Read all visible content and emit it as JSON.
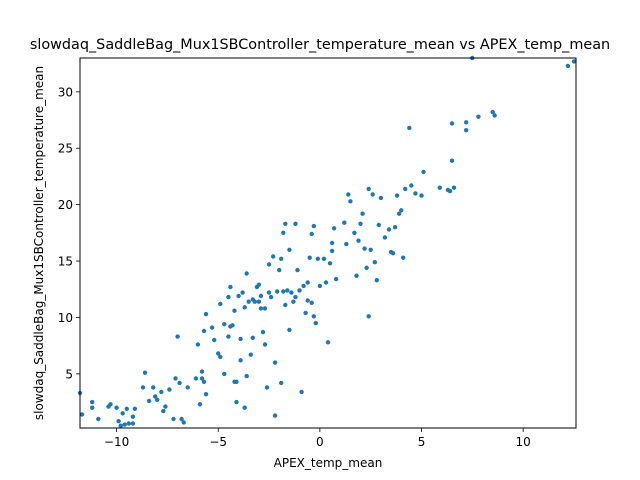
{
  "chart_data": {
    "type": "scatter",
    "title": "slowdaq_SaddleBag_Mux1SBController_temperature_mean vs APEX_temp_mean",
    "xlabel": "APEX_temp_mean",
    "ylabel": "slowdaq_SaddleBag_Mux1SBController_temperature_mean",
    "xlim": [
      -11.8,
      12.6
    ],
    "ylim": [
      0.2,
      33.0
    ],
    "xticks": [
      -10,
      -5,
      0,
      5,
      10
    ],
    "yticks": [
      5,
      10,
      15,
      20,
      25,
      30
    ],
    "grid": false,
    "marker_color": "#1f77b4",
    "points": [
      [
        -11.8,
        3.3
      ],
      [
        -11.7,
        1.4
      ],
      [
        -11.2,
        2.5
      ],
      [
        -11.2,
        2.0
      ],
      [
        -10.9,
        1.0
      ],
      [
        -10.4,
        2.1
      ],
      [
        -10.3,
        2.3
      ],
      [
        -10.0,
        2.0
      ],
      [
        -9.9,
        0.8
      ],
      [
        -9.8,
        0.4
      ],
      [
        -9.7,
        1.5
      ],
      [
        -9.6,
        0.5
      ],
      [
        -9.5,
        1.9
      ],
      [
        -9.4,
        0.6
      ],
      [
        -9.2,
        1.2
      ],
      [
        -9.2,
        0.6
      ],
      [
        -9.1,
        1.9
      ],
      [
        -8.7,
        3.8
      ],
      [
        -8.6,
        5.1
      ],
      [
        -8.4,
        2.6
      ],
      [
        -8.2,
        3.8
      ],
      [
        -8.1,
        3.0
      ],
      [
        -8.0,
        2.7
      ],
      [
        -7.8,
        3.4
      ],
      [
        -7.7,
        1.7
      ],
      [
        -7.6,
        2.1
      ],
      [
        -7.4,
        3.6
      ],
      [
        -7.2,
        1.0
      ],
      [
        -7.1,
        4.6
      ],
      [
        -7.0,
        8.3
      ],
      [
        -6.9,
        4.2
      ],
      [
        -6.8,
        1.0
      ],
      [
        -6.7,
        0.7
      ],
      [
        -6.5,
        3.8
      ],
      [
        -6.1,
        4.6
      ],
      [
        -6.0,
        7.6
      ],
      [
        -5.9,
        2.3
      ],
      [
        -5.8,
        4.6
      ],
      [
        -5.8,
        5.2
      ],
      [
        -5.7,
        4.3
      ],
      [
        -5.7,
        8.8
      ],
      [
        -5.6,
        10.3
      ],
      [
        -5.6,
        3.2
      ],
      [
        -5.3,
        9.1
      ],
      [
        -5.2,
        8.0
      ],
      [
        -5.0,
        6.8
      ],
      [
        -4.9,
        6.5
      ],
      [
        -4.9,
        11.2
      ],
      [
        -4.7,
        5.0
      ],
      [
        -4.7,
        9.4
      ],
      [
        -4.5,
        8.3
      ],
      [
        -4.5,
        11.8
      ],
      [
        -4.4,
        9.2
      ],
      [
        -4.4,
        12.7
      ],
      [
        -4.3,
        9.3
      ],
      [
        -4.2,
        10.6
      ],
      [
        -4.2,
        4.3
      ],
      [
        -4.1,
        4.3
      ],
      [
        -4.1,
        2.5
      ],
      [
        -4.0,
        11.9
      ],
      [
        -3.9,
        6.2
      ],
      [
        -3.9,
        8.1
      ],
      [
        -3.8,
        12.2
      ],
      [
        -3.7,
        10.9
      ],
      [
        -3.7,
        2.0
      ],
      [
        -3.6,
        4.8
      ],
      [
        -3.6,
        13.9
      ],
      [
        -3.5,
        11.4
      ],
      [
        -3.4,
        6.7
      ],
      [
        -3.3,
        8.2
      ],
      [
        -3.3,
        11.6
      ],
      [
        -3.2,
        11.4
      ],
      [
        -3.1,
        12.7
      ],
      [
        -3.0,
        11.4
      ],
      [
        -3.0,
        12.9
      ],
      [
        -2.9,
        10.8
      ],
      [
        -2.9,
        11.9
      ],
      [
        -2.8,
        8.7
      ],
      [
        -2.7,
        7.6
      ],
      [
        -2.7,
        10.8
      ],
      [
        -2.6,
        3.8
      ],
      [
        -2.5,
        12.2
      ],
      [
        -2.5,
        14.7
      ],
      [
        -2.4,
        11.8
      ],
      [
        -2.3,
        15.4
      ],
      [
        -2.2,
        1.3
      ],
      [
        -2.2,
        6.0
      ],
      [
        -2.1,
        12.3
      ],
      [
        -2.0,
        14.2
      ],
      [
        -1.9,
        15.2
      ],
      [
        -1.9,
        4.2
      ],
      [
        -1.8,
        12.3
      ],
      [
        -1.8,
        17.5
      ],
      [
        -1.7,
        18.3
      ],
      [
        -1.7,
        11.1
      ],
      [
        -1.6,
        12.4
      ],
      [
        -1.5,
        16.0
      ],
      [
        -1.5,
        8.9
      ],
      [
        -1.4,
        12.2
      ],
      [
        -1.3,
        11.4
      ],
      [
        -1.2,
        11.8
      ],
      [
        -1.2,
        18.3
      ],
      [
        -1.1,
        14.2
      ],
      [
        -1.0,
        12.4
      ],
      [
        -0.9,
        3.4
      ],
      [
        -0.8,
        12.8
      ],
      [
        -0.7,
        10.4
      ],
      [
        -0.6,
        11.5
      ],
      [
        -0.6,
        13.1
      ],
      [
        -0.5,
        15.3
      ],
      [
        -0.4,
        11.3
      ],
      [
        -0.4,
        17.4
      ],
      [
        -0.3,
        10.1
      ],
      [
        -0.3,
        18.1
      ],
      [
        -0.2,
        9.5
      ],
      [
        -0.1,
        15.2
      ],
      [
        0.0,
        12.8
      ],
      [
        0.2,
        15.2
      ],
      [
        0.3,
        13.1
      ],
      [
        0.4,
        7.8
      ],
      [
        0.5,
        14.8
      ],
      [
        0.6,
        16.6
      ],
      [
        0.6,
        15.9
      ],
      [
        0.7,
        17.9
      ],
      [
        0.8,
        13.4
      ],
      [
        1.2,
        18.4
      ],
      [
        1.3,
        16.5
      ],
      [
        1.4,
        20.9
      ],
      [
        1.5,
        20.3
      ],
      [
        1.7,
        17.5
      ],
      [
        1.8,
        13.7
      ],
      [
        1.9,
        16.8
      ],
      [
        2.0,
        18.3
      ],
      [
        2.1,
        19.2
      ],
      [
        2.2,
        16.1
      ],
      [
        2.3,
        14.4
      ],
      [
        2.4,
        10.1
      ],
      [
        2.4,
        21.4
      ],
      [
        2.5,
        16.0
      ],
      [
        2.6,
        20.9
      ],
      [
        2.7,
        14.9
      ],
      [
        2.8,
        13.3
      ],
      [
        2.9,
        18.2
      ],
      [
        3.0,
        20.6
      ],
      [
        3.2,
        17.1
      ],
      [
        3.4,
        17.8
      ],
      [
        3.5,
        15.8
      ],
      [
        3.6,
        15.7
      ],
      [
        3.7,
        18.0
      ],
      [
        3.8,
        20.8
      ],
      [
        3.9,
        19.2
      ],
      [
        4.0,
        19.5
      ],
      [
        4.1,
        15.3
      ],
      [
        4.2,
        21.4
      ],
      [
        4.4,
        26.8
      ],
      [
        4.5,
        21.7
      ],
      [
        4.7,
        21.0
      ],
      [
        5.0,
        20.8
      ],
      [
        5.1,
        22.9
      ],
      [
        5.9,
        21.5
      ],
      [
        6.3,
        21.3
      ],
      [
        6.4,
        21.2
      ],
      [
        6.5,
        27.2
      ],
      [
        6.5,
        23.9
      ],
      [
        6.6,
        21.5
      ],
      [
        7.2,
        27.3
      ],
      [
        7.2,
        26.6
      ],
      [
        7.5,
        33.0
      ],
      [
        7.8,
        27.8
      ],
      [
        8.5,
        28.2
      ],
      [
        8.6,
        27.9
      ],
      [
        12.2,
        32.3
      ],
      [
        12.5,
        32.7
      ]
    ]
  }
}
